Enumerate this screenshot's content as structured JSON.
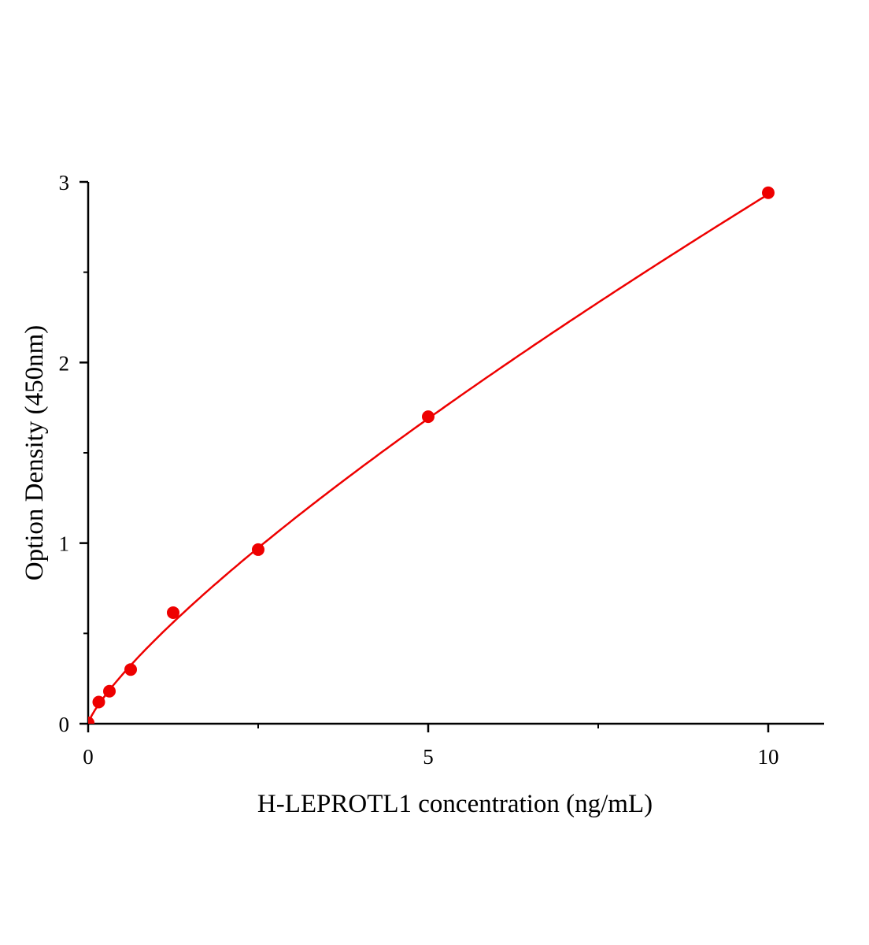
{
  "chart_data": {
    "type": "scatter",
    "title": "",
    "xlabel": "H-LEPROTL1 concentration (ng/mL)",
    "ylabel": "Option Density (450nm)",
    "xlim": [
      0,
      10.8
    ],
    "ylim": [
      0,
      3
    ],
    "x_ticks": [
      0,
      5,
      10
    ],
    "x_tick_labels": [
      "0",
      "5",
      "10"
    ],
    "x_minor_ticks": [
      2.5,
      7.5
    ],
    "y_ticks": [
      0,
      1,
      2,
      3
    ],
    "y_tick_labels": [
      "0",
      "1",
      "2",
      "3"
    ],
    "y_minor_ticks": [
      0.5,
      1.5,
      2.5
    ],
    "grid": false,
    "legend": "none",
    "color": "#ee0000",
    "series": [
      {
        "x": [
          0,
          0.156,
          0.3125,
          0.625,
          1.25,
          2.5,
          5,
          10
        ],
        "y": [
          0.005,
          0.12,
          0.18,
          0.3,
          0.615,
          0.964,
          1.7,
          2.94
        ],
        "fit_curve": true
      }
    ]
  }
}
